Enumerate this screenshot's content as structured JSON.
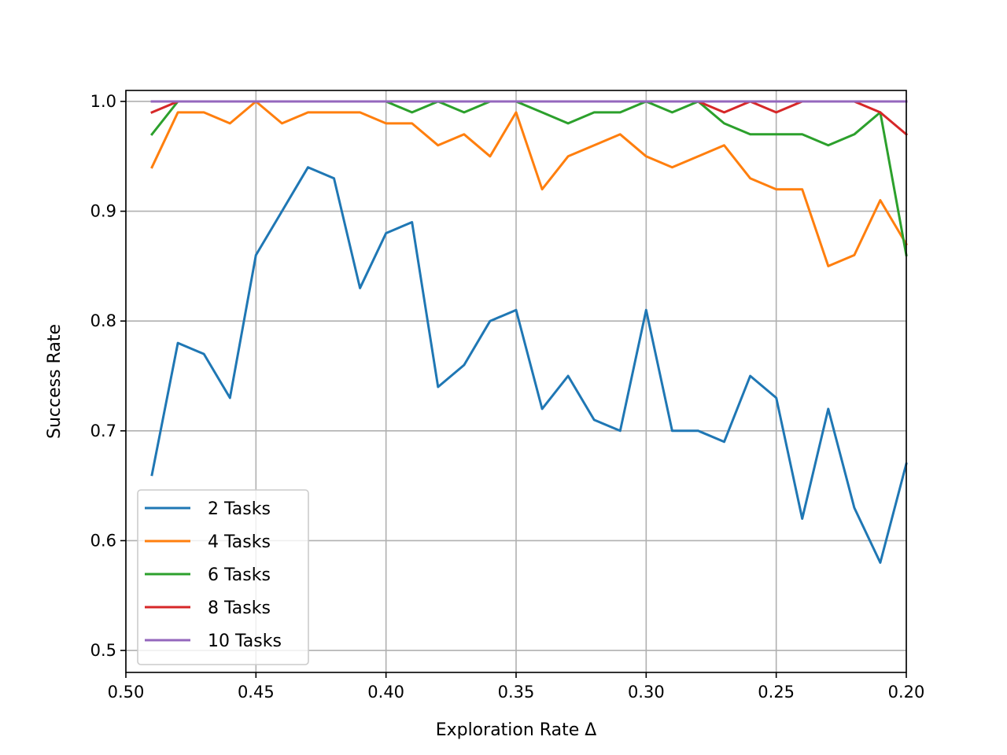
{
  "chart_data": {
    "type": "line",
    "title": "",
    "xlabel": "Exploration Rate Δ",
    "ylabel": "Success Rate",
    "xlim": [
      0.5,
      0.2
    ],
    "ylim": [
      0.48,
      1.01
    ],
    "x_inverted": true,
    "grid": true,
    "legend_position": "lower-left",
    "x_ticks": [
      0.5,
      0.45,
      0.4,
      0.35,
      0.3,
      0.25,
      0.2
    ],
    "x_tick_labels": [
      "0.50",
      "0.45",
      "0.40",
      "0.35",
      "0.30",
      "0.25",
      "0.20"
    ],
    "y_ticks": [
      0.5,
      0.6,
      0.7,
      0.8,
      0.9,
      1.0
    ],
    "y_tick_labels": [
      "0.5",
      "0.6",
      "0.7",
      "0.8",
      "0.9",
      "1.0"
    ],
    "x": [
      0.49,
      0.48,
      0.47,
      0.46,
      0.45,
      0.44,
      0.43,
      0.42,
      0.41,
      0.4,
      0.39,
      0.38,
      0.37,
      0.36,
      0.35,
      0.34,
      0.33,
      0.32,
      0.31,
      0.3,
      0.29,
      0.28,
      0.27,
      0.26,
      0.25,
      0.24,
      0.23,
      0.22,
      0.21,
      0.2
    ],
    "series": [
      {
        "name": "2 Tasks",
        "color": "#1f77b4",
        "values": [
          0.66,
          0.78,
          0.77,
          0.73,
          0.86,
          0.9,
          0.94,
          0.93,
          0.83,
          0.88,
          0.89,
          0.74,
          0.76,
          0.8,
          0.81,
          0.72,
          0.75,
          0.71,
          0.7,
          0.81,
          0.7,
          0.7,
          0.69,
          0.75,
          0.73,
          0.62,
          0.72,
          0.63,
          0.58,
          0.67
        ]
      },
      {
        "name": "4 Tasks",
        "color": "#ff7f0e",
        "values": [
          0.94,
          0.99,
          0.99,
          0.98,
          1.0,
          0.98,
          0.99,
          0.99,
          0.99,
          0.98,
          0.98,
          0.96,
          0.97,
          0.95,
          0.99,
          0.92,
          0.95,
          0.96,
          0.97,
          0.95,
          0.94,
          0.95,
          0.96,
          0.93,
          0.92,
          0.92,
          0.85,
          0.86,
          0.91,
          0.87
        ]
      },
      {
        "name": "6 Tasks",
        "color": "#2ca02c",
        "values": [
          0.97,
          1.0,
          1.0,
          1.0,
          1.0,
          1.0,
          1.0,
          1.0,
          1.0,
          1.0,
          0.99,
          1.0,
          0.99,
          1.0,
          1.0,
          0.99,
          0.98,
          0.99,
          0.99,
          1.0,
          0.99,
          1.0,
          0.98,
          0.97,
          0.97,
          0.97,
          0.96,
          0.97,
          0.99,
          0.86
        ]
      },
      {
        "name": "8 Tasks",
        "color": "#d62728",
        "values": [
          0.99,
          1.0,
          1.0,
          1.0,
          1.0,
          1.0,
          1.0,
          1.0,
          1.0,
          1.0,
          1.0,
          1.0,
          1.0,
          1.0,
          1.0,
          1.0,
          1.0,
          1.0,
          1.0,
          1.0,
          1.0,
          1.0,
          0.99,
          1.0,
          0.99,
          1.0,
          1.0,
          1.0,
          0.99,
          0.97
        ]
      },
      {
        "name": "10 Tasks",
        "color": "#9467bd",
        "values": [
          1.0,
          1.0,
          1.0,
          1.0,
          1.0,
          1.0,
          1.0,
          1.0,
          1.0,
          1.0,
          1.0,
          1.0,
          1.0,
          1.0,
          1.0,
          1.0,
          1.0,
          1.0,
          1.0,
          1.0,
          1.0,
          1.0,
          1.0,
          1.0,
          1.0,
          1.0,
          1.0,
          1.0,
          1.0,
          1.0
        ]
      }
    ]
  }
}
